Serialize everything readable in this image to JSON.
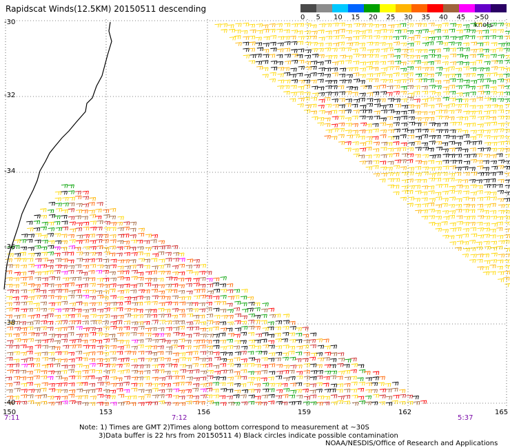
{
  "title": "Rapidscat Winds(12.5KM) 20150511 descending",
  "legend": {
    "colors": [
      "#4a4a4a",
      "#8c8c8c",
      "#00c8ff",
      "#0064ff",
      "#00a000",
      "#ffff00",
      "#ffb400",
      "#ff6400",
      "#ff0000",
      "#a0643c",
      "#ff00ff",
      "#6400c8",
      "#2a0064"
    ],
    "labels": [
      "0",
      "5",
      "10",
      "15",
      "20",
      "25",
      "30",
      "35",
      "40",
      "45",
      ">50 knots"
    ]
  },
  "lat_labels": [
    "-30",
    "-32",
    "-34",
    "-36",
    "-38",
    "-40"
  ],
  "lon_labels": [
    "150",
    "153",
    "156",
    "159",
    "162",
    "165"
  ],
  "times": [
    "7:11",
    "7:12",
    "5:37"
  ],
  "notes": {
    "line1": "Note: 1) Times are GMT 2)Times along bottom correspond to measurement at ~30S",
    "line2": "3)Data buffer is 22 hrs from 20150511 4) Black circles indicate possible contamination"
  },
  "credit": "NOAA/NESDIS/Office of Research and Applications"
}
